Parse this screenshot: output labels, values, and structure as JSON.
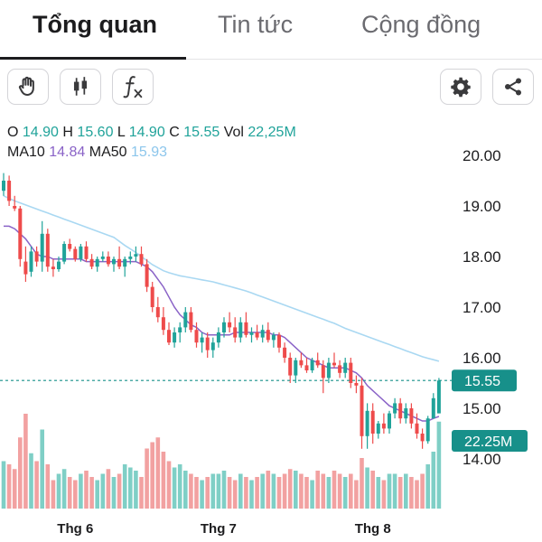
{
  "tabs": [
    {
      "label": "Tổng quan",
      "active": true
    },
    {
      "label": "Tin tức",
      "active": false
    },
    {
      "label": "Cộng đồng",
      "active": false
    }
  ],
  "toolbar": {
    "left_icons": [
      "hand-icon",
      "candlestick-icon",
      "function-icon"
    ],
    "right_icons": [
      "gear-icon",
      "share-icon"
    ]
  },
  "legend": {
    "o_label": "O",
    "o_value": "14.90",
    "h_label": "H",
    "h_value": "15.60",
    "l_label": "L",
    "l_value": "14.90",
    "c_label": "C",
    "c_value": "15.55",
    "vol_label": "Vol",
    "vol_value": "22,25M",
    "ma10_label": "MA10",
    "ma10_value": "14.84",
    "ma50_label": "MA50",
    "ma50_value": "15.93"
  },
  "price_tag": "15.55",
  "volume_tag": "22.25M",
  "colors": {
    "up": "#20a39a",
    "down": "#ee4b4b",
    "up_volume": "#7fcfc6",
    "down_volume": "#f2a1a1",
    "ma10": "#8a63c7",
    "ma50": "#a9d8f2",
    "tag": "#17908a"
  },
  "chart_data": {
    "type": "candlestick",
    "y_ticks": [
      "20.00",
      "19.00",
      "18.00",
      "17.00",
      "16.00",
      "15.00",
      "14.00"
    ],
    "ylim": [
      14.0,
      20.0
    ],
    "x_ticks": [
      {
        "label": "Thg 6",
        "index": 13
      },
      {
        "label": "Thg 7",
        "index": 39
      },
      {
        "label": "Thg 8",
        "index": 67
      }
    ],
    "last_close": 15.55,
    "candles": [
      [
        19.3,
        19.65,
        19.2,
        19.5
      ],
      [
        19.5,
        19.6,
        19.0,
        19.1
      ],
      [
        19.0,
        19.2,
        18.9,
        18.95
      ],
      [
        18.95,
        19.0,
        17.8,
        17.95
      ],
      [
        17.9,
        18.2,
        17.5,
        17.65
      ],
      [
        17.7,
        18.2,
        17.6,
        18.1
      ],
      [
        18.1,
        18.2,
        17.8,
        17.9
      ],
      [
        17.9,
        18.7,
        17.7,
        18.45
      ],
      [
        18.45,
        18.55,
        17.7,
        17.8
      ],
      [
        17.8,
        17.95,
        17.6,
        17.75
      ],
      [
        17.75,
        18.0,
        17.7,
        17.9
      ],
      [
        17.9,
        18.3,
        17.85,
        18.25
      ],
      [
        18.25,
        18.35,
        18.1,
        18.15
      ],
      [
        18.15,
        18.2,
        17.9,
        17.95
      ],
      [
        17.95,
        18.25,
        17.9,
        18.2
      ],
      [
        18.2,
        18.3,
        17.9,
        17.95
      ],
      [
        17.95,
        18.05,
        17.75,
        17.8
      ],
      [
        17.8,
        18.0,
        17.7,
        17.95
      ],
      [
        17.95,
        18.1,
        17.9,
        18.0
      ],
      [
        18.0,
        18.1,
        17.8,
        17.85
      ],
      [
        17.85,
        18.0,
        17.7,
        17.95
      ],
      [
        17.95,
        18.2,
        17.75,
        17.8
      ],
      [
        17.8,
        18.0,
        17.6,
        17.95
      ],
      [
        17.95,
        18.1,
        17.85,
        18.0
      ],
      [
        18.0,
        18.2,
        17.9,
        18.05
      ],
      [
        18.05,
        18.2,
        17.8,
        17.85
      ],
      [
        17.85,
        17.95,
        17.3,
        17.4
      ],
      [
        17.4,
        17.5,
        16.9,
        17.0
      ],
      [
        17.0,
        17.2,
        16.7,
        16.8
      ],
      [
        16.8,
        17.0,
        16.45,
        16.55
      ],
      [
        16.55,
        16.7,
        16.25,
        16.3
      ],
      [
        16.3,
        16.6,
        16.2,
        16.5
      ],
      [
        16.5,
        16.7,
        16.3,
        16.6
      ],
      [
        16.6,
        17.0,
        16.5,
        16.9
      ],
      [
        16.9,
        17.0,
        16.5,
        16.55
      ],
      [
        16.55,
        16.7,
        16.2,
        16.3
      ],
      [
        16.3,
        16.5,
        16.1,
        16.4
      ],
      [
        16.4,
        16.5,
        16.0,
        16.15
      ],
      [
        16.15,
        16.4,
        16.0,
        16.3
      ],
      [
        16.3,
        16.6,
        16.2,
        16.5
      ],
      [
        16.5,
        16.8,
        16.4,
        16.7
      ],
      [
        16.7,
        16.9,
        16.5,
        16.6
      ],
      [
        16.6,
        16.8,
        16.3,
        16.4
      ],
      [
        16.4,
        16.8,
        16.3,
        16.7
      ],
      [
        16.7,
        16.9,
        16.4,
        16.45
      ],
      [
        16.45,
        16.6,
        16.3,
        16.5
      ],
      [
        16.5,
        16.65,
        16.35,
        16.4
      ],
      [
        16.4,
        16.65,
        16.3,
        16.55
      ],
      [
        16.55,
        16.7,
        16.3,
        16.35
      ],
      [
        16.35,
        16.5,
        16.2,
        16.45
      ],
      [
        16.45,
        16.5,
        16.1,
        16.2
      ],
      [
        16.2,
        16.3,
        15.9,
        16.0
      ],
      [
        16.0,
        16.1,
        15.5,
        15.65
      ],
      [
        15.65,
        16.0,
        15.5,
        15.95
      ],
      [
        15.95,
        16.1,
        15.8,
        15.85
      ],
      [
        15.85,
        16.0,
        15.7,
        15.75
      ],
      [
        15.75,
        16.0,
        15.7,
        15.95
      ],
      [
        15.95,
        16.1,
        15.8,
        15.85
      ],
      [
        15.85,
        15.95,
        15.3,
        15.6
      ],
      [
        15.6,
        16.0,
        15.5,
        15.9
      ],
      [
        15.9,
        16.1,
        15.8,
        15.85
      ],
      [
        15.85,
        15.95,
        15.6,
        15.7
      ],
      [
        15.7,
        16.0,
        15.6,
        15.9
      ],
      [
        15.9,
        16.0,
        15.4,
        15.5
      ],
      [
        15.5,
        15.65,
        15.3,
        15.45
      ],
      [
        15.45,
        15.6,
        14.2,
        14.45
      ],
      [
        14.45,
        15.1,
        14.2,
        14.95
      ],
      [
        14.95,
        15.1,
        14.3,
        14.5
      ],
      [
        14.5,
        14.75,
        14.4,
        14.7
      ],
      [
        14.7,
        14.9,
        14.5,
        14.6
      ],
      [
        14.6,
        14.95,
        14.5,
        14.9
      ],
      [
        14.9,
        15.2,
        14.8,
        15.1
      ],
      [
        15.1,
        15.2,
        14.7,
        14.8
      ],
      [
        14.8,
        15.1,
        14.7,
        15.0
      ],
      [
        15.0,
        15.1,
        14.6,
        14.7
      ],
      [
        14.7,
        14.9,
        14.4,
        14.5
      ],
      [
        14.5,
        14.6,
        14.2,
        14.35
      ],
      [
        14.35,
        14.85,
        14.3,
        14.8
      ],
      [
        14.8,
        15.3,
        14.8,
        15.2
      ],
      [
        14.9,
        15.6,
        14.9,
        15.55
      ]
    ],
    "volume": [
      30,
      28,
      25,
      45,
      60,
      35,
      30,
      50,
      28,
      18,
      22,
      25,
      20,
      18,
      22,
      24,
      20,
      18,
      22,
      25,
      20,
      22,
      28,
      26,
      24,
      20,
      38,
      42,
      45,
      36,
      30,
      26,
      28,
      24,
      22,
      20,
      18,
      20,
      22,
      22,
      24,
      20,
      18,
      22,
      20,
      18,
      20,
      22,
      24,
      22,
      20,
      22,
      25,
      24,
      22,
      20,
      18,
      24,
      22,
      20,
      24,
      22,
      20,
      22,
      18,
      32,
      26,
      24,
      20,
      18,
      22,
      22,
      20,
      22,
      20,
      18,
      22,
      28,
      36,
      55
    ],
    "ma10": [
      18.6,
      18.6,
      18.55,
      18.45,
      18.35,
      18.2,
      18.05,
      18.0,
      18.0,
      17.95,
      17.95,
      17.95,
      17.95,
      17.95,
      17.95,
      17.9,
      17.9,
      17.9,
      17.9,
      17.9,
      17.9,
      17.9,
      17.9,
      17.9,
      17.9,
      17.85,
      17.8,
      17.7,
      17.55,
      17.4,
      17.2,
      17.0,
      16.85,
      16.75,
      16.65,
      16.6,
      16.5,
      16.45,
      16.45,
      16.45,
      16.45,
      16.45,
      16.5,
      16.5,
      16.5,
      16.5,
      16.5,
      16.5,
      16.5,
      16.45,
      16.45,
      16.4,
      16.3,
      16.2,
      16.1,
      16.0,
      15.95,
      15.9,
      15.85,
      15.8,
      15.8,
      15.8,
      15.8,
      15.75,
      15.7,
      15.6,
      15.45,
      15.35,
      15.25,
      15.15,
      15.05,
      15.0,
      14.95,
      14.9,
      14.85,
      14.8,
      14.75,
      14.75,
      14.8,
      14.84
    ],
    "ma50": [
      19.2,
      19.15,
      19.1,
      19.06,
      19.02,
      18.98,
      18.94,
      18.9,
      18.86,
      18.82,
      18.78,
      18.74,
      18.7,
      18.66,
      18.62,
      18.58,
      18.54,
      18.5,
      18.46,
      18.42,
      18.38,
      18.3,
      18.22,
      18.15,
      18.08,
      18.0,
      17.92,
      17.84,
      17.78,
      17.72,
      17.68,
      17.65,
      17.62,
      17.6,
      17.58,
      17.56,
      17.54,
      17.52,
      17.5,
      17.47,
      17.44,
      17.41,
      17.38,
      17.35,
      17.32,
      17.28,
      17.24,
      17.2,
      17.16,
      17.12,
      17.08,
      17.04,
      17.0,
      16.96,
      16.92,
      16.88,
      16.84,
      16.8,
      16.76,
      16.72,
      16.68,
      16.63,
      16.58,
      16.54,
      16.5,
      16.46,
      16.42,
      16.38,
      16.34,
      16.3,
      16.26,
      16.22,
      16.18,
      16.14,
      16.1,
      16.06,
      16.02,
      15.99,
      15.96,
      15.93
    ]
  }
}
